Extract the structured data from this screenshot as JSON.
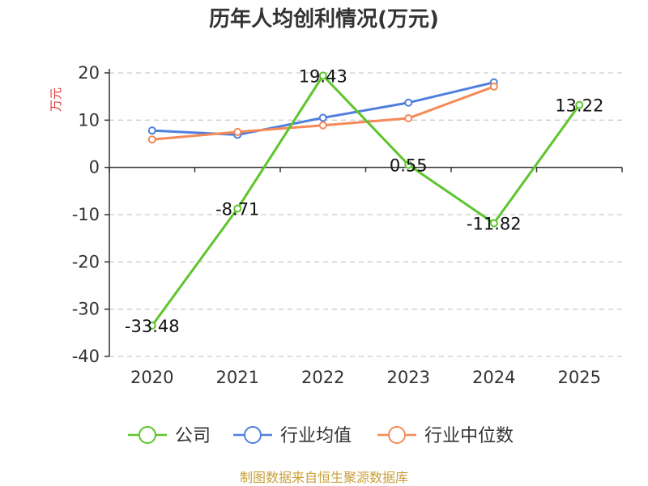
{
  "chart_data": {
    "type": "line",
    "title": "历年人均创利情况(万元)",
    "ylabel": "万元",
    "xlabel": "",
    "categories": [
      "2020",
      "2021",
      "2022",
      "2023",
      "2024",
      "2025"
    ],
    "ylim": [
      -40,
      20
    ],
    "yticks": [
      20,
      10,
      0,
      -10,
      -20,
      -30,
      -40
    ],
    "grid": true,
    "legend_position": "bottom",
    "series": [
      {
        "name": "公司",
        "color": "#5ec52b",
        "values": [
          -33.48,
          -8.71,
          19.43,
          0.55,
          -11.82,
          13.22
        ],
        "data_labels": [
          "-33.48",
          "-8.71",
          "19.43",
          "0.55",
          "-11.82",
          "13.22"
        ]
      },
      {
        "name": "行业均值",
        "color": "#4f7fde",
        "values": [
          7.8,
          6.9,
          10.5,
          13.7,
          18.0,
          null
        ]
      },
      {
        "name": "行业中位数",
        "color": "#f58a58",
        "values": [
          5.9,
          7.5,
          8.9,
          10.4,
          17.1,
          null
        ]
      }
    ]
  },
  "source_text": "制图数据来自恒生聚源数据库"
}
